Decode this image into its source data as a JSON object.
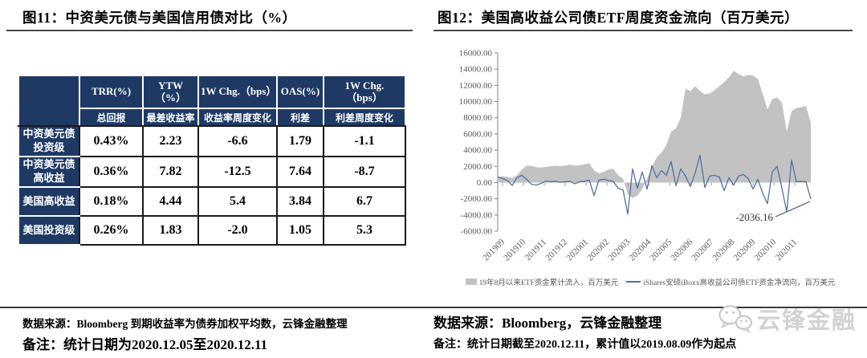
{
  "left_panel": {
    "title": "图11：中资美元债与美国信用债对比（%）",
    "table": {
      "header_row1": [
        "TRR(%)",
        "YTW\n（%）",
        "1W Chg.（bps）",
        "OAS(%)",
        "1W Chg.\n（bps）"
      ],
      "header_row2": [
        "总回报",
        "最差收益率",
        "收益率周度变化",
        "利差",
        "利差周度变化"
      ],
      "rows": [
        {
          "label": "中资美元债\n投资级",
          "values": [
            "0.43%",
            "2.23",
            "-6.6",
            "1.79",
            "-1.1"
          ]
        },
        {
          "label": "中资美元债\n高收益",
          "values": [
            "0.36%",
            "7.82",
            "-12.5",
            "7.64",
            "-8.7"
          ]
        },
        {
          "label": "美国高收益",
          "values": [
            "0.18%",
            "4.44",
            "5.4",
            "3.84",
            "6.7"
          ]
        },
        {
          "label": "美国投资级",
          "values": [
            "0.26%",
            "1.83",
            "-2.0",
            "1.05",
            "5.3"
          ]
        }
      ]
    },
    "source": "数据来源：Bloomberg 到期收益率为债券加权平均数，云锋金融整理",
    "note": "备注：统计日期为2020.12.05至2020.12.11"
  },
  "right_panel": {
    "title": "图12：美国高收益公司债ETF周度资金流向（百万美元）",
    "source": "数据来源：Bloomberg，云锋金融整理",
    "note": "备注：统计日期截至2020.12.11，累计值以2019.08.09作为起点",
    "logo_text": "云锋金融"
  },
  "chart_data": {
    "type": "combo",
    "title": "美国高收益公司债ETF周度资金流向（百万美元）",
    "x_labels": [
      "201909",
      "201910",
      "201911",
      "201912",
      "202001",
      "202002",
      "202003",
      "202004",
      "202005",
      "202006",
      "202007",
      "202008",
      "202009",
      "202010",
      "202011"
    ],
    "ylim": [
      -6000,
      16000
    ],
    "yticks": [
      16000,
      14000,
      12000,
      10000,
      8000,
      6000,
      4000,
      2000,
      0,
      -2000,
      -4000,
      -6000
    ],
    "grid": false,
    "legend_position": "bottom",
    "series": [
      {
        "name": "19年8月以来ETF资金累计流入，百万美元",
        "type": "area",
        "color": "#c2c2c2",
        "values": [
          650,
          780,
          700,
          560,
          900,
          1600,
          2100,
          2050,
          1900,
          1850,
          1950,
          2000,
          2080,
          2020,
          2100,
          2200,
          2100,
          2150,
          2250,
          2400,
          1500,
          1150,
          1300,
          1600,
          1700,
          900,
          500,
          -1450,
          -1900,
          -1600,
          -800,
          500,
          1900,
          3100,
          3700,
          4600,
          6300,
          6700,
          8000,
          11600,
          11300,
          11900,
          11300,
          10900,
          11000,
          11400,
          11900,
          12400,
          13000,
          13800,
          13400,
          13100,
          13300,
          13200,
          12800,
          11000,
          9000,
          10300,
          10500,
          9900,
          6300,
          8800,
          9200,
          9300,
          9450,
          7414
        ]
      },
      {
        "name": "iShares安硕iBoxx高收益公司债ETF资金净流向，百万美元",
        "type": "line",
        "color": "#4e73a2",
        "values": [
          700,
          500,
          250,
          -350,
          600,
          900,
          400,
          -200,
          -300,
          -100,
          200,
          100,
          150,
          50,
          100,
          150,
          -150,
          100,
          150,
          300,
          -1600,
          300,
          400,
          250,
          150,
          -700,
          -900,
          -3900,
          1700,
          -700,
          1300,
          -800,
          2100,
          600,
          1500,
          900,
          2600,
          -400,
          1700,
          800,
          -500,
          1200,
          3400,
          -600,
          800,
          900,
          700,
          -1000,
          600,
          -300,
          800,
          1000,
          500,
          -800,
          400,
          -1300,
          -2600,
          1300,
          2000,
          -700,
          -3600,
          2800,
          100,
          150,
          100,
          -2036.16
        ]
      }
    ],
    "annotation": {
      "text": "-2036.16",
      "value": -2036.16
    }
  }
}
